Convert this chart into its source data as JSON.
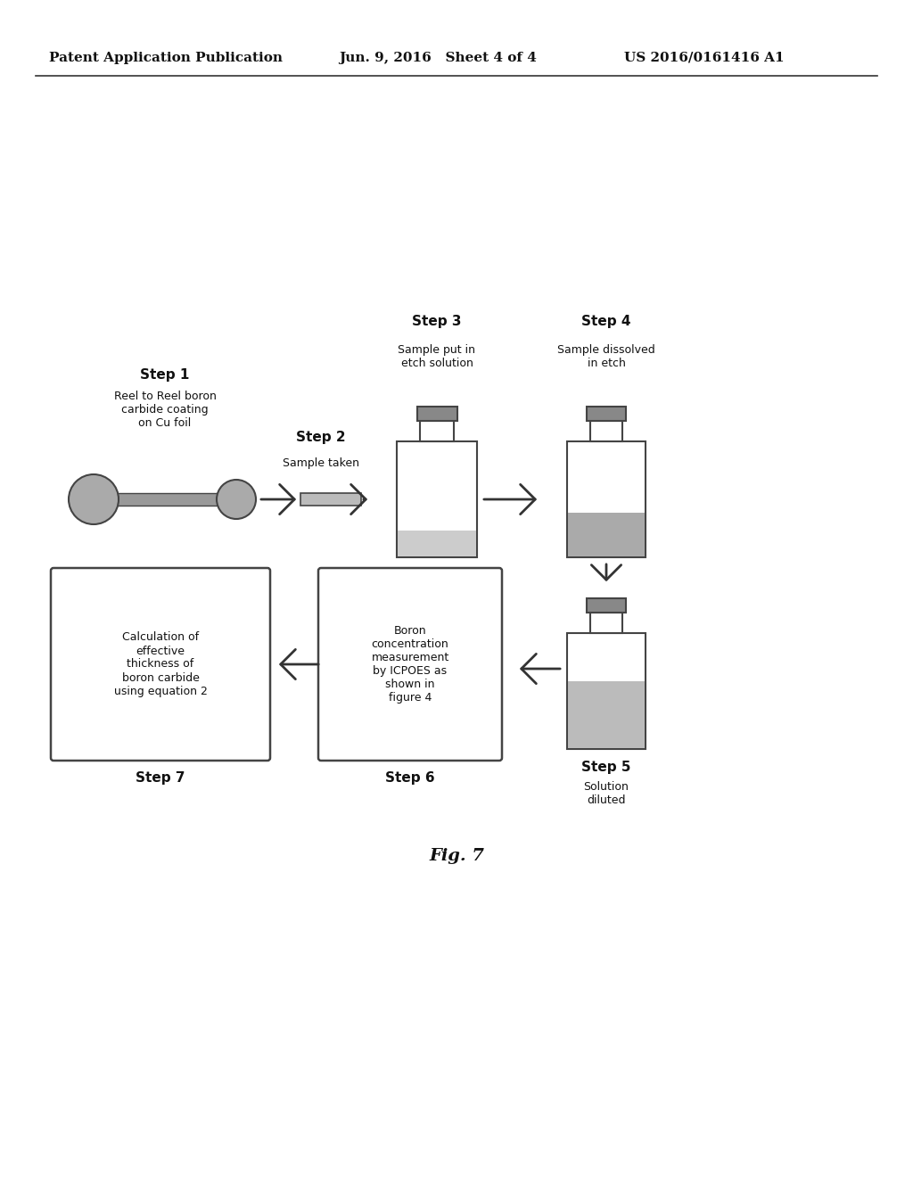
{
  "bg_color": "#ffffff",
  "header_left": "Patent Application Publication",
  "header_mid": "Jun. 9, 2016   Sheet 4 of 4",
  "header_right": "US 2016/0161416 A1",
  "fig_label": "Fig. 7",
  "step1_title": "Step 1",
  "step1_text": "Reel to Reel boron\ncarbide coating\non Cu foil",
  "step2_title": "Step 2",
  "step2_text": "Sample taken",
  "step3_title": "Step 3",
  "step3_text": "Sample put in\netch solution",
  "step4_title": "Step 4",
  "step4_text": "Sample dissolved\nin etch",
  "step5_title": "Step 5",
  "step5_text": "Solution\ndiluted",
  "step6_title": "Step 6",
  "step6_text": "Boron\nconcentration\nmeasurement\nby ICPOES as\nshown in\nfigure 4",
  "step7_title": "Step 7",
  "step7_text": "Calculation of\neffective\nthickness of\nboron carbide\nusing equation 2",
  "cap_color": "#888888",
  "liquid_color3": "#cccccc",
  "liquid_color4": "#aaaaaa",
  "liquid_color5": "#bbbbbb",
  "outline_color": "#444444",
  "reel_color": "#aaaaaa",
  "foil_color": "#999999",
  "sample_color": "#bbbbbb",
  "box_edge": "#444444",
  "arrow_color": "#333333",
  "header_color": "#111111"
}
